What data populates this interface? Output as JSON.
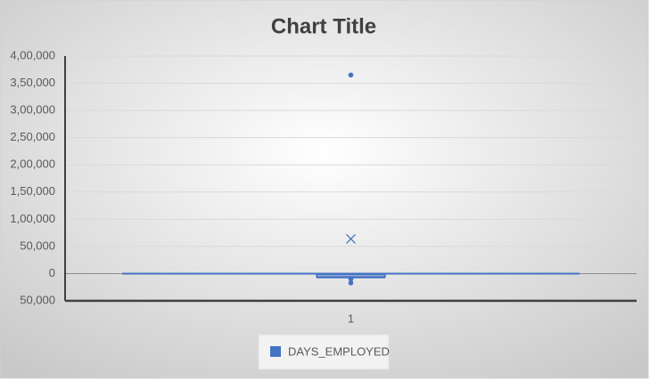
{
  "chart_data": {
    "type": "box",
    "title": "Chart Title",
    "categories": [
      "1"
    ],
    "series": [
      {
        "name": "DAYS_EMPLOYED",
        "color": "#4472c4",
        "min": -7500,
        "q1": -5700,
        "median": -2200,
        "q3": -300,
        "max": 0,
        "mean": 63800,
        "outliers": [
          365243,
          -10000,
          -17000
        ]
      }
    ],
    "ylim": [
      -50000,
      400000
    ],
    "yticks": [
      {
        "value": -50000,
        "label": "50,000"
      },
      0,
      {
        "value": 50000,
        "label": "50,000"
      },
      {
        "value": 100000,
        "label": "1,00,000"
      },
      {
        "value": 150000,
        "label": "1,50,000"
      },
      {
        "value": 200000,
        "label": "2,00,000"
      },
      {
        "value": 250000,
        "label": "2,50,000"
      },
      {
        "value": 300000,
        "label": "3,00,000"
      },
      {
        "value": 350000,
        "label": "3,50,000"
      },
      {
        "value": 400000,
        "label": "4,00,000"
      }
    ],
    "grid": true
  }
}
